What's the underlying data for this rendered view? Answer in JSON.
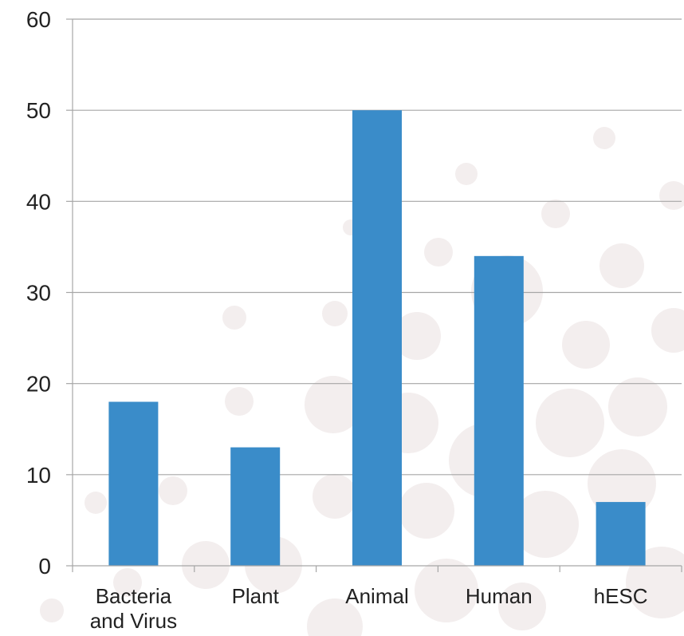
{
  "chart_data": {
    "type": "bar",
    "categories": [
      [
        "Bacteria",
        "and Virus"
      ],
      [
        "Plant"
      ],
      [
        "Animal"
      ],
      [
        "Human"
      ],
      [
        "hESC"
      ]
    ],
    "values": [
      18,
      13,
      50,
      34,
      7
    ],
    "ylim": [
      0,
      60
    ],
    "yticks": [
      "0",
      "10",
      "20",
      "30",
      "40",
      "50",
      "60"
    ],
    "grid": true,
    "bar_color": "#3a8cc9",
    "grid_color": "#a6a6a6",
    "background_dot_color": "#f3eeee"
  }
}
